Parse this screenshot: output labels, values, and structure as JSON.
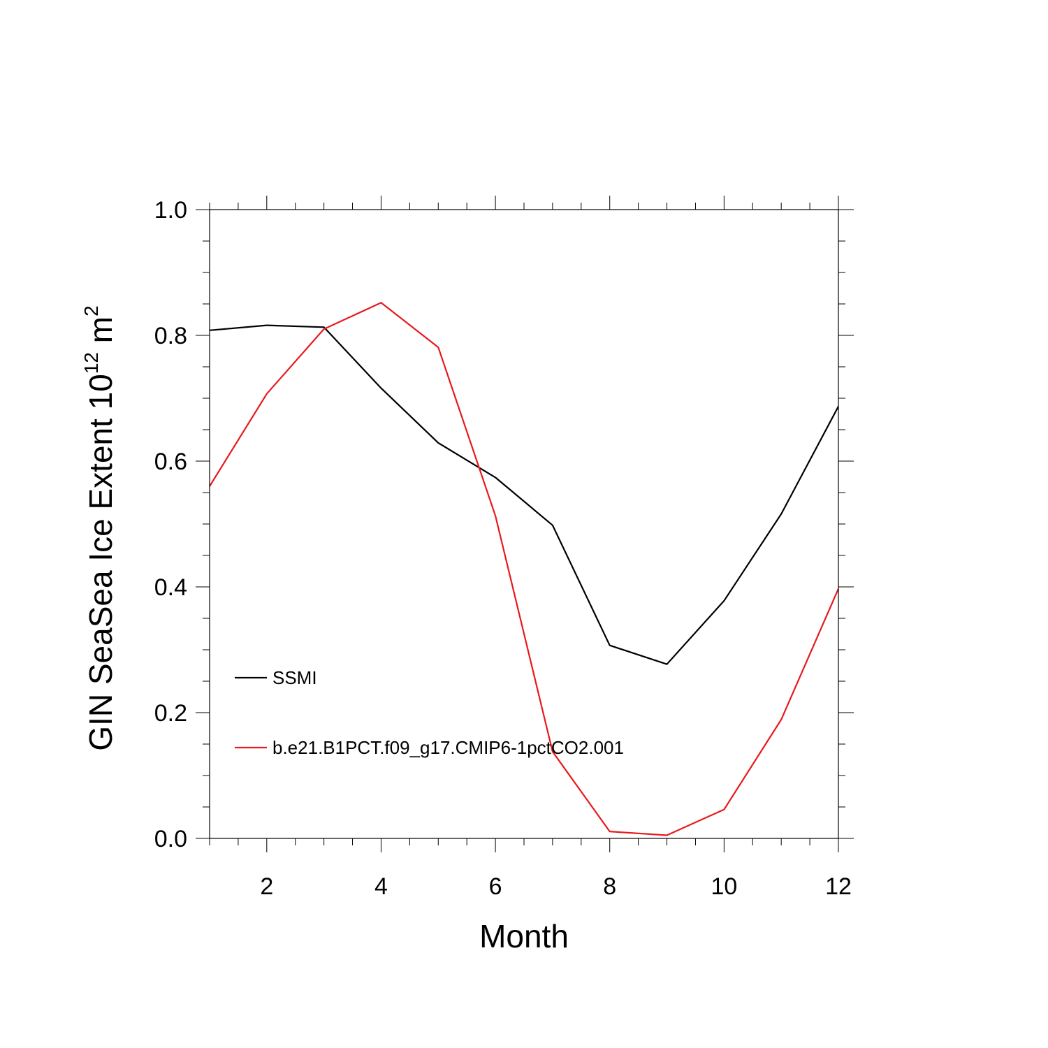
{
  "chart_data": {
    "type": "line",
    "xlabel": "Month",
    "ylabel": {
      "main": "GIN SeaSea Ice Extent 10",
      "exponent": "12",
      "unit": "m",
      "unit_exponent": "2"
    },
    "xlim": [
      1,
      12
    ],
    "ylim": [
      0,
      1.0
    ],
    "x_ticks": [
      2,
      4,
      6,
      8,
      10,
      12
    ],
    "x_tick_labels": [
      "2",
      "4",
      "6",
      "8",
      "10",
      "12"
    ],
    "y_ticks": [
      0.0,
      0.2,
      0.4,
      0.6,
      0.8,
      1.0
    ],
    "y_tick_labels": [
      "0.0",
      "0.2",
      "0.4",
      "0.6",
      "0.8",
      "1.0"
    ],
    "grid": false,
    "legend_position": "lower-left",
    "x": [
      1,
      2,
      3,
      4,
      5,
      6,
      7,
      8,
      9,
      10,
      11,
      12
    ],
    "series": [
      {
        "name": "SSMI",
        "color": "#000000",
        "values": [
          0.808,
          0.816,
          0.813,
          0.716,
          0.629,
          0.574,
          0.498,
          0.307,
          0.277,
          0.378,
          0.516,
          0.687
        ]
      },
      {
        "name": "b.e21.B1PCT.f09_g17.CMIP6-1pctCO2.001",
        "color": "#e8191b",
        "values": [
          0.56,
          0.707,
          0.81,
          0.852,
          0.781,
          0.513,
          0.138,
          0.011,
          0.005,
          0.046,
          0.189,
          0.397
        ]
      }
    ]
  }
}
